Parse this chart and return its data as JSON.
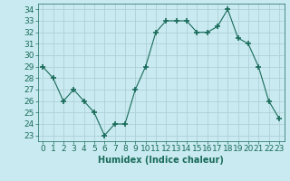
{
  "x": [
    0,
    1,
    2,
    3,
    4,
    5,
    6,
    7,
    8,
    9,
    10,
    11,
    12,
    13,
    14,
    15,
    16,
    17,
    18,
    19,
    20,
    21,
    22,
    23
  ],
  "y": [
    29,
    28,
    26,
    27,
    26,
    25,
    23,
    24,
    24,
    27,
    29,
    32,
    33,
    33,
    33,
    32,
    32,
    32.5,
    34,
    31.5,
    31,
    29,
    26,
    24.5
  ],
  "line_color": "#1a6b5a",
  "marker": "+",
  "marker_size": 5,
  "bg_color": "#c8eaf0",
  "grid_color": "#b0d0d8",
  "xlabel": "Humidex (Indice chaleur)",
  "ylim": [
    22.5,
    34.5
  ],
  "xlim": [
    -0.5,
    23.5
  ],
  "yticks": [
    23,
    24,
    25,
    26,
    27,
    28,
    29,
    30,
    31,
    32,
    33,
    34
  ],
  "xticks": [
    0,
    1,
    2,
    3,
    4,
    5,
    6,
    7,
    8,
    9,
    10,
    11,
    12,
    13,
    14,
    15,
    16,
    17,
    18,
    19,
    20,
    21,
    22,
    23
  ],
  "xtick_labels": [
    "0",
    "1",
    "2",
    "3",
    "4",
    "5",
    "6",
    "7",
    "8",
    "9",
    "10",
    "11",
    "12",
    "13",
    "14",
    "15",
    "16",
    "17",
    "18",
    "19",
    "20",
    "21",
    "22",
    "23"
  ],
  "title_color": "#1a6b5a",
  "axis_label_fontsize": 7,
  "tick_fontsize": 6.5
}
